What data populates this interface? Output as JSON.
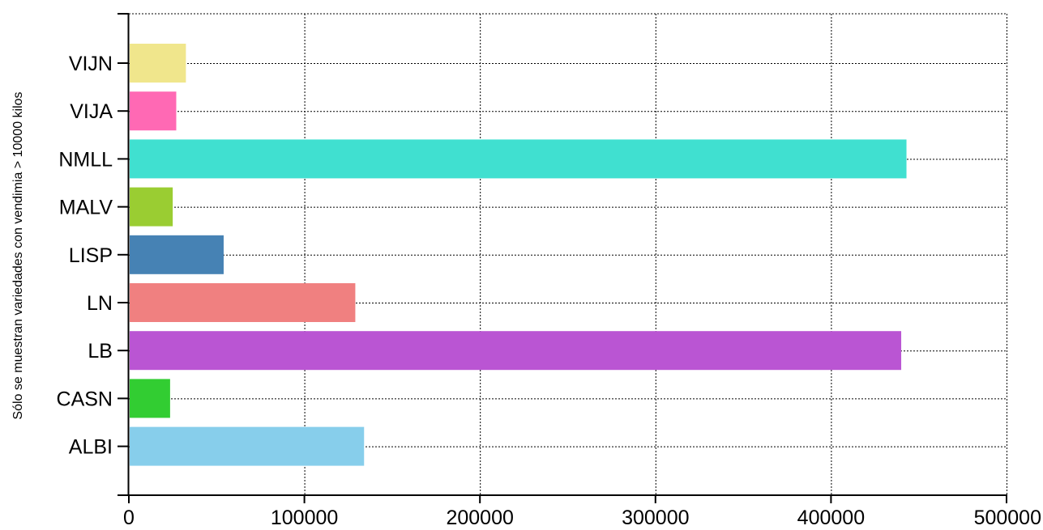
{
  "chart_data": {
    "type": "bar",
    "orientation": "horizontal",
    "title": "",
    "xlabel": "",
    "ylabel": "Sólo se muestran variedades con vendimia > 10000 kilos",
    "categories": [
      "VIJN",
      "VIJA",
      "NMLL",
      "MALV",
      "LISP",
      "LN",
      "LB",
      "CASN",
      "ALBI"
    ],
    "values": [
      32500,
      27000,
      443000,
      25000,
      54000,
      129000,
      440000,
      23500,
      134000
    ],
    "colors": [
      "#F0E68C",
      "#FF69B4",
      "#40E0D0",
      "#9ACD32",
      "#4682B4",
      "#F08080",
      "#BA55D3",
      "#32CD32",
      "#87CEEB"
    ],
    "xlim": [
      0,
      500000
    ],
    "xticks": [
      "0",
      "100000",
      "200000",
      "300000",
      "400000",
      "500000"
    ],
    "grid": true,
    "legend": "none"
  }
}
